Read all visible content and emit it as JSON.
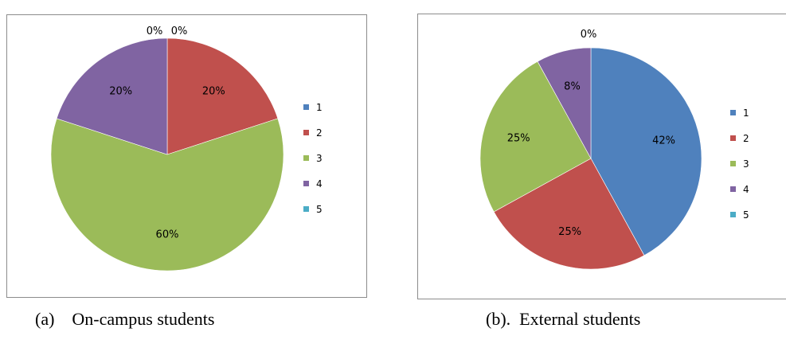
{
  "chart_data": [
    {
      "type": "pie",
      "title": "",
      "categories": [
        "1",
        "2",
        "3",
        "4",
        "5"
      ],
      "values": [
        0,
        20,
        60,
        20,
        0
      ],
      "data_labels": [
        "0%",
        "20%",
        "60%",
        "20%",
        "0%"
      ],
      "colors": [
        "#4F81BD",
        "#C0504D",
        "#9BBB59",
        "#8064A2",
        "#4BACC6"
      ],
      "legend_position": "right",
      "caption": "(a)    On-campus students"
    },
    {
      "type": "pie",
      "title": "",
      "categories": [
        "1",
        "2",
        "3",
        "4",
        "5"
      ],
      "values": [
        42,
        25,
        25,
        8,
        0
      ],
      "data_labels": [
        "42%",
        "25%",
        "25%",
        "8%",
        "0%"
      ],
      "colors": [
        "#4F81BD",
        "#C0504D",
        "#9BBB59",
        "#8064A2",
        "#4BACC6"
      ],
      "legend_position": "right",
      "caption": "(b).  External students"
    }
  ]
}
